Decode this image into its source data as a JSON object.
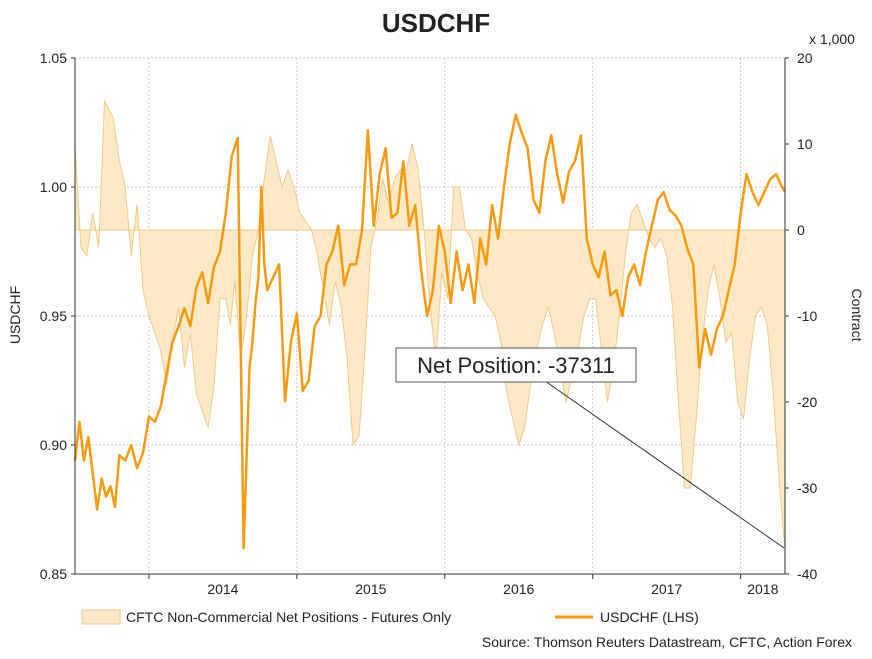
{
  "chart_data": {
    "type": "line",
    "title": "USDCHF",
    "ylabel": "USDCHF",
    "y2label": "Contract",
    "y2_multiplier": "x 1,000",
    "ylim": [
      0.85,
      1.05
    ],
    "y2lim": [
      -40,
      20
    ],
    "yticks": [
      "1.05",
      "1.00",
      "0.95",
      "0.90",
      "0.85"
    ],
    "y2ticks": [
      "20",
      "10",
      "0",
      "-10",
      "-20",
      "-30",
      "-40"
    ],
    "xticks": [
      "2014",
      "2015",
      "2016",
      "2017",
      "2018"
    ],
    "grid": true,
    "legend_position": "bottom",
    "annotation": "Net Position: -37311",
    "source": "Source: Thomson Reuters Datastream, CFTC, Action Forex",
    "colors": {
      "line": "#f39c12",
      "area_fill": "#fde9c6",
      "area_edge": "#f0c98a",
      "grid": "#c8c8c8"
    },
    "series": [
      {
        "name": "CFTC Non-Commercial Net Positions - Futures Only",
        "axis": "right",
        "kind": "area",
        "x": [
          2013.5,
          2013.54,
          2013.58,
          2013.62,
          2013.66,
          2013.7,
          2013.73,
          2013.76,
          2013.8,
          2013.84,
          2013.88,
          2013.92,
          2013.96,
          2014.0,
          2014.04,
          2014.08,
          2014.12,
          2014.16,
          2014.2,
          2014.24,
          2014.28,
          2014.32,
          2014.36,
          2014.4,
          2014.44,
          2014.48,
          2014.52,
          2014.55,
          2014.58,
          2014.62,
          2014.66,
          2014.7,
          2014.74,
          2014.78,
          2014.82,
          2014.86,
          2014.9,
          2014.94,
          2014.98,
          2015.02,
          2015.06,
          2015.1,
          2015.14,
          2015.18,
          2015.22,
          2015.26,
          2015.3,
          2015.34,
          2015.38,
          2015.42,
          2015.46,
          2015.5,
          2015.54,
          2015.58,
          2015.62,
          2015.66,
          2015.7,
          2015.74,
          2015.78,
          2015.82,
          2015.86,
          2015.9,
          2015.94,
          2015.98,
          2016.02,
          2016.06,
          2016.1,
          2016.14,
          2016.18,
          2016.22,
          2016.26,
          2016.3,
          2016.34,
          2016.38,
          2016.42,
          2016.46,
          2016.5,
          2016.54,
          2016.58,
          2016.62,
          2016.66,
          2016.7,
          2016.74,
          2016.78,
          2016.82,
          2016.86,
          2016.9,
          2016.94,
          2016.98,
          2017.02,
          2017.06,
          2017.1,
          2017.14,
          2017.18,
          2017.22,
          2017.26,
          2017.3,
          2017.34,
          2017.38,
          2017.42,
          2017.46,
          2017.5,
          2017.54,
          2017.58,
          2017.62,
          2017.66,
          2017.7,
          2017.74,
          2017.78,
          2017.82,
          2017.86,
          2017.9,
          2017.94,
          2017.98,
          2018.02,
          2018.06,
          2018.1,
          2018.14,
          2018.18,
          2018.22,
          2018.26,
          2018.3
        ],
        "values": [
          10,
          -2,
          -3,
          2,
          -2,
          15,
          14,
          13,
          8,
          5,
          -3,
          3,
          -7,
          -10,
          -12,
          -14,
          -18,
          -13,
          -9,
          -16,
          -12,
          -19,
          -21,
          -23,
          -18,
          -8,
          -8,
          -11,
          -6,
          -15,
          -10,
          -3,
          0,
          6,
          11,
          8,
          5,
          7,
          5,
          2,
          1,
          0,
          -3,
          -7,
          -11,
          -6,
          -9,
          -15,
          -25,
          -24,
          -14,
          -2,
          1,
          6,
          3,
          6,
          7,
          7,
          10,
          7,
          0,
          -9,
          -15,
          -5,
          -8,
          5,
          5,
          0,
          -1,
          -5,
          -8,
          -9,
          -10,
          -13,
          -19,
          -22,
          -25,
          -23,
          -18,
          -14,
          -11,
          -9,
          -12,
          -16,
          -20,
          -17,
          -14,
          -10,
          -8,
          -8,
          -14,
          -20,
          -16,
          -10,
          -3,
          2,
          3,
          1,
          -1,
          -2,
          -1,
          -3,
          -9,
          -20,
          -30,
          -30,
          -22,
          -13,
          -7,
          -4,
          -8,
          -13,
          -12,
          -20,
          -22,
          -15,
          -10,
          -9,
          -11,
          -19,
          -29,
          -37.3
        ]
      },
      {
        "name": "USDCHF (LHS)",
        "axis": "left",
        "kind": "line",
        "x": [
          2013.5,
          2013.53,
          2013.56,
          2013.59,
          2013.62,
          2013.65,
          2013.68,
          2013.71,
          2013.74,
          2013.77,
          2013.8,
          2013.84,
          2013.88,
          2013.92,
          2013.96,
          2014.0,
          2014.04,
          2014.08,
          2014.12,
          2014.16,
          2014.2,
          2014.24,
          2014.28,
          2014.32,
          2014.36,
          2014.4,
          2014.44,
          2014.48,
          2014.52,
          2014.56,
          2014.6,
          2014.64,
          2014.68,
          2014.7,
          2014.72,
          2014.74,
          2014.76,
          2014.78,
          2014.8,
          2014.84,
          2014.88,
          2014.92,
          2014.96,
          2015.0,
          2015.04,
          2015.08,
          2015.12,
          2015.16,
          2015.2,
          2015.24,
          2015.28,
          2015.32,
          2015.36,
          2015.4,
          2015.44,
          2015.48,
          2015.52,
          2015.56,
          2015.6,
          2015.64,
          2015.68,
          2015.72,
          2015.76,
          2015.8,
          2015.84,
          2015.88,
          2015.92,
          2015.96,
          2016.0,
          2016.04,
          2016.08,
          2016.12,
          2016.16,
          2016.2,
          2016.24,
          2016.28,
          2016.32,
          2016.36,
          2016.4,
          2016.44,
          2016.48,
          2016.52,
          2016.56,
          2016.6,
          2016.64,
          2016.68,
          2016.72,
          2016.76,
          2016.8,
          2016.84,
          2016.88,
          2016.92,
          2016.96,
          2017.0,
          2017.04,
          2017.08,
          2017.12,
          2017.16,
          2017.2,
          2017.24,
          2017.28,
          2017.32,
          2017.36,
          2017.4,
          2017.44,
          2017.48,
          2017.52,
          2017.56,
          2017.6,
          2017.64,
          2017.68,
          2017.72,
          2017.76,
          2017.8,
          2017.84,
          2017.88,
          2017.92,
          2017.96,
          2018.0,
          2018.04,
          2018.08,
          2018.12,
          2018.16,
          2018.2,
          2018.24,
          2018.28,
          2018.3
        ],
        "values": [
          0.894,
          0.909,
          0.894,
          0.903,
          0.889,
          0.875,
          0.887,
          0.88,
          0.884,
          0.876,
          0.896,
          0.894,
          0.9,
          0.891,
          0.897,
          0.911,
          0.909,
          0.915,
          0.928,
          0.94,
          0.946,
          0.953,
          0.946,
          0.961,
          0.967,
          0.955,
          0.969,
          0.975,
          0.99,
          1.012,
          1.019,
          0.86,
          0.93,
          0.94,
          0.955,
          0.965,
          1.0,
          0.97,
          0.96,
          0.965,
          0.97,
          0.917,
          0.94,
          0.951,
          0.921,
          0.925,
          0.946,
          0.95,
          0.97,
          0.975,
          0.985,
          0.962,
          0.97,
          0.97,
          0.983,
          1.022,
          0.985,
          1.005,
          1.015,
          0.988,
          0.99,
          1.01,
          0.985,
          0.993,
          0.968,
          0.95,
          0.96,
          0.985,
          0.975,
          0.955,
          0.975,
          0.96,
          0.97,
          0.955,
          0.98,
          0.97,
          0.993,
          0.98,
          1.0,
          1.017,
          1.028,
          1.021,
          1.015,
          0.995,
          0.99,
          1.01,
          1.02,
          1.005,
          0.994,
          1.006,
          1.01,
          1.02,
          0.98,
          0.97,
          0.965,
          0.975,
          0.958,
          0.96,
          0.95,
          0.965,
          0.97,
          0.962,
          0.975,
          0.985,
          0.995,
          0.998,
          0.991,
          0.989,
          0.985,
          0.976,
          0.97,
          0.93,
          0.945,
          0.935,
          0.945,
          0.95,
          0.96,
          0.97,
          0.99,
          1.005,
          0.998,
          0.993,
          0.998,
          1.003,
          1.005,
          1.0,
          0.998
        ]
      }
    ]
  }
}
